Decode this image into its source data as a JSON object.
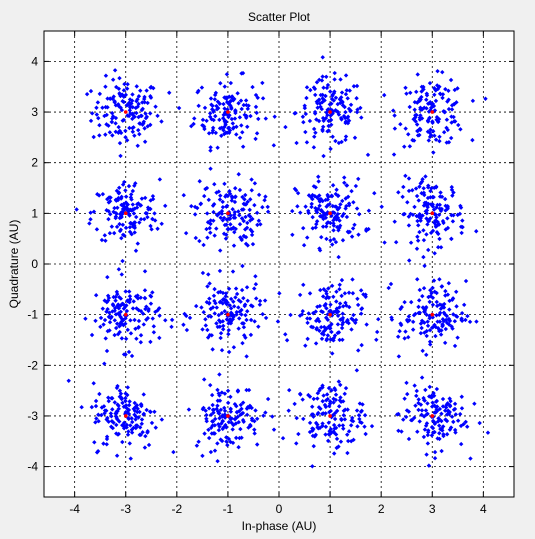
{
  "window": {
    "background": "#f0f0f0"
  },
  "chart_data": {
    "type": "scatter",
    "title": "Scatter Plot",
    "xlabel": "In-phase (AU)",
    "ylabel": "Quadrature (AU)",
    "xlim": [
      -4.6,
      4.6
    ],
    "ylim": [
      -4.6,
      4.6
    ],
    "xticks": [
      -4,
      -3,
      -2,
      -1,
      0,
      1,
      2,
      3,
      4
    ],
    "yticks": [
      -4,
      -3,
      -2,
      -1,
      0,
      1,
      2,
      3,
      4
    ],
    "grid": true,
    "grid_style": "dotted",
    "colors": {
      "received": "#0000ff",
      "ideal": "#ff0000",
      "axes_bg": "#ffffff"
    },
    "constellation": "16-QAM",
    "ideal_points": [
      [
        -3,
        3
      ],
      [
        -1,
        3
      ],
      [
        1,
        3
      ],
      [
        3,
        3
      ],
      [
        -3,
        1
      ],
      [
        -1,
        1
      ],
      [
        1,
        1
      ],
      [
        3,
        1
      ],
      [
        -3,
        -1
      ],
      [
        -1,
        -1
      ],
      [
        1,
        -1
      ],
      [
        3,
        -1
      ],
      [
        -3,
        -3
      ],
      [
        -1,
        -3
      ],
      [
        1,
        -3
      ],
      [
        3,
        -3
      ]
    ],
    "samples_per_point": 140,
    "noise_std": 0.33,
    "series": [
      {
        "marker": "diamond",
        "color": "#0000ff",
        "role": "received"
      },
      {
        "marker": "dot",
        "color": "#ff0000",
        "role": "ideal"
      }
    ]
  }
}
